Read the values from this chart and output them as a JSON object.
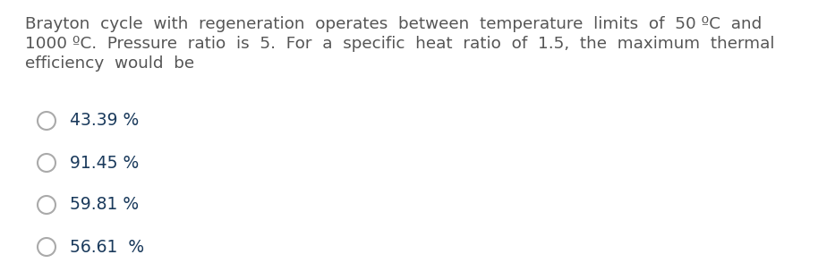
{
  "background_color": "#ffffff",
  "question_lines": [
    "Brayton  cycle  with  regeneration  operates  between  temperature  limits  of  50 ºC  and",
    "1000 ºC.  Pressure  ratio  is  5.  For  a  specific  heat  ratio  of  1.5,  the  maximum  thermal",
    "efficiency  would  be"
  ],
  "options": [
    "43.39 %",
    "91.45 %",
    "59.81 %",
    "56.61  %"
  ],
  "text_color": "#555555",
  "option_color": "#1a3a5c",
  "circle_edge_color": "#aaaaaa",
  "font_size_question": 13.2,
  "font_size_options": 13.5,
  "fig_width": 9.14,
  "fig_height": 3.13,
  "dpi": 100
}
